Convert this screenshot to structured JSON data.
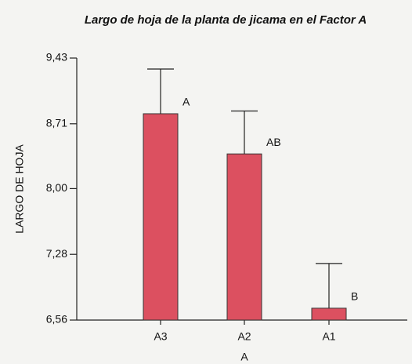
{
  "chart_data": {
    "type": "bar",
    "title": "Largo de hoja de la planta de  jicama en el Factor A",
    "y_label": "LARGO DE HOJA",
    "x_label": "A",
    "categories": [
      "A3",
      "A2",
      "A1"
    ],
    "values": [
      8.82,
      8.38,
      6.69
    ],
    "errors": [
      0.49,
      0.47,
      0.49
    ],
    "annotations": [
      "A",
      "AB",
      "B"
    ],
    "color": "#dc5060",
    "ylim": [
      6.56,
      9.43
    ],
    "yticks": [
      {
        "value": 6.56,
        "label": "6,56"
      },
      {
        "value": 7.28,
        "label": "7,28"
      },
      {
        "value": 8,
        "label": "8,00"
      },
      {
        "value": 8.71,
        "label": "8,71"
      },
      {
        "value": 9.43,
        "label": "9,43"
      }
    ],
    "grid": false
  }
}
